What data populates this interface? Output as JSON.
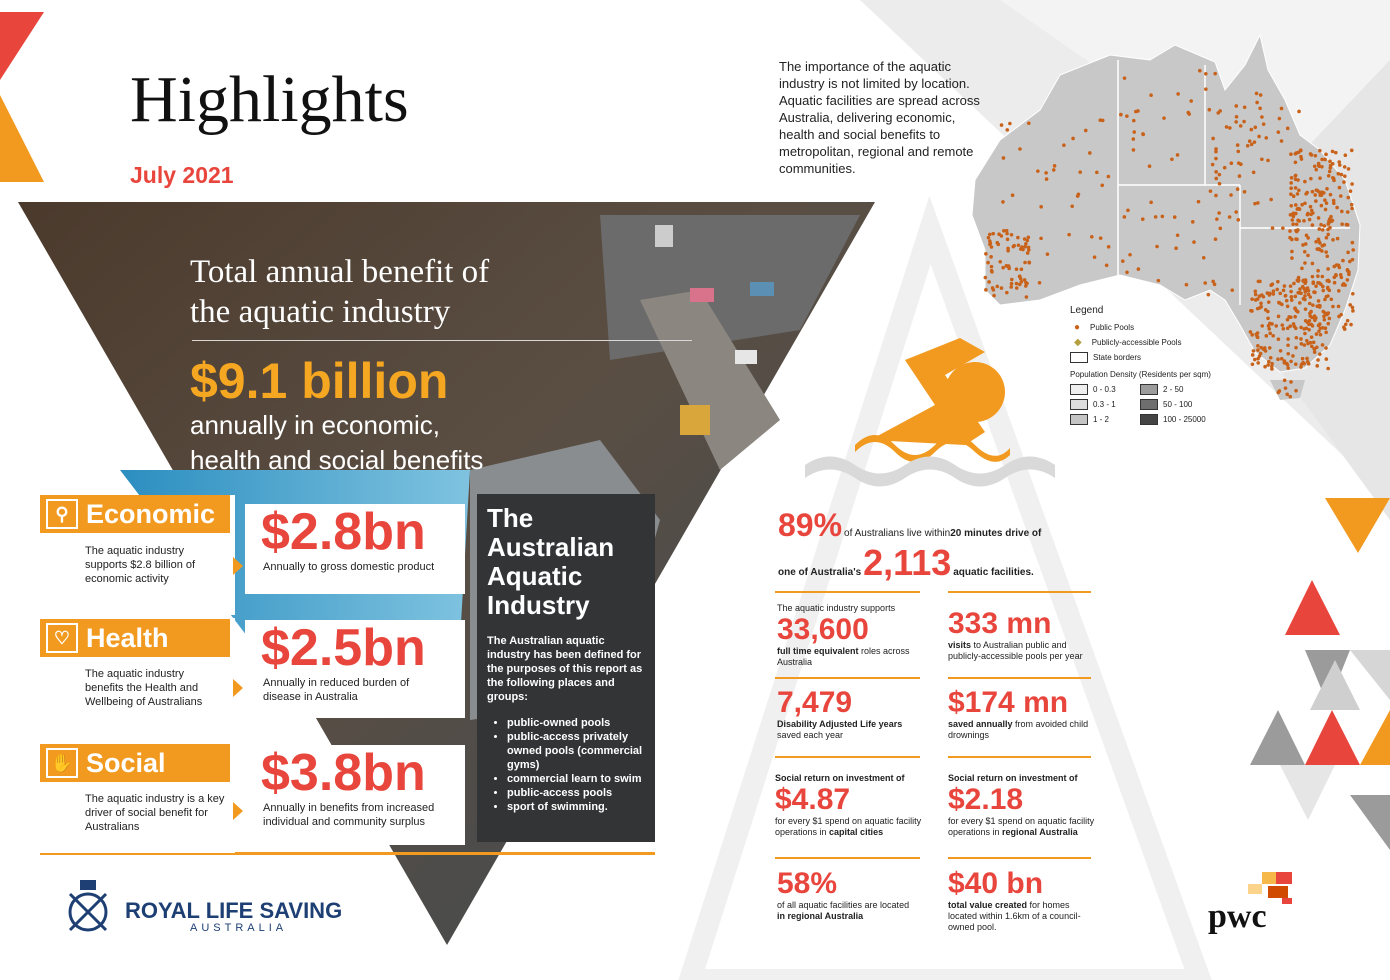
{
  "header": {
    "title": "Highlights",
    "date": "July 2021"
  },
  "intro": {
    "text": "The importance of the aquatic industry is not limited by location. Aquatic facilities are spread across Australia, delivering economic, health and social benefits to metropolitan, regional and remote communities."
  },
  "total": {
    "heading_line1": "Total annual benefit of",
    "heading_line2": "the aquatic industry",
    "amount": "$9.1 billion",
    "sub_line1": "annually in economic,",
    "sub_line2": "health and social benefits"
  },
  "kpis": [
    {
      "label": "Economic",
      "icon": "chart-magnifier-icon",
      "glyph": "⚲",
      "description": "The aquatic industry supports $2.8 billion of economic activity",
      "value": "$2.8bn",
      "caption": "Annually to gross domestic product"
    },
    {
      "label": "Health",
      "icon": "heart-pulse-icon",
      "glyph": "♡",
      "description": "The aquatic industry benefits the Health and Wellbeing of Australians",
      "value": "$2.5bn",
      "caption": "Annually in reduced burden of disease in Australia"
    },
    {
      "label": "Social",
      "icon": "raised-hands-icon",
      "glyph": "✋",
      "description": "The aquatic industry is a key driver of social benefit for Australians",
      "value": "$3.8bn",
      "caption": "Annually in benefits from increased individual and community surplus"
    }
  ],
  "aquatic_box": {
    "title_line1": "The",
    "title_line2": "Australian",
    "title_line3": "Aquatic",
    "title_line4": "Industry",
    "body": "The Australian aquatic industry has been defined for the purposes of this report as the following places and groups:",
    "items": [
      "public-owned pools",
      "public-access privately owned pools (commercial gyms)",
      "commercial learn to swim",
      "public-access pools",
      "sport of swimming."
    ]
  },
  "access": {
    "percent": "89%",
    "text_a": "of Australians live within ",
    "text_b": "20 minutes drive of",
    "text_c": "one of Australia's",
    "facilities": "2,113",
    "text_d": "aquatic facilities."
  },
  "stats": {
    "jobs": {
      "pre": "The aquatic industry supports",
      "value": "33,600",
      "bold": "full time equivalent",
      "post": " roles across Australia"
    },
    "visits": {
      "value": "333 mn",
      "bold": "visits",
      "post": " to Australian public and publicly-accessible pools per year"
    },
    "daly": {
      "value": "7,479",
      "bold": "Disability Adjusted Life years",
      "post": " saved each year"
    },
    "saved": {
      "value": "$174 mn",
      "bold": "saved annually",
      "post": " from avoided child drownings"
    },
    "sroi_cap": {
      "pre": "Social return on investment of",
      "value": "$4.87",
      "post": "for every $1 spend on aquatic facility operations in ",
      "bold": "capital cities"
    },
    "sroi_reg": {
      "pre": "Social return on investment of",
      "value": "$2.18",
      "post": "for every $1 spend on aquatic facility operations in ",
      "bold": "regional Australia"
    },
    "regional": {
      "value": "58%",
      "post": "of all aquatic facilities are located ",
      "bold": "in regional Australia"
    },
    "homes": {
      "value": "$40 bn",
      "bold": "total value created",
      "post": " for homes located within 1.6km of a council-owned pool."
    }
  },
  "map_legend": {
    "title": "Legend",
    "public_pools": "Public Pools",
    "accessible_pools": "Publicly-accessible Pools",
    "state_borders": "State borders",
    "density_title": "Population Density (Residents per sqm)",
    "ranges": [
      "0 - 0.3",
      "0.3 - 1",
      "1 - 2",
      "2 - 50",
      "50 - 100",
      "100 - 25000"
    ]
  },
  "logos": {
    "rls_main": "ROYAL LIFE SAVING",
    "rls_sub": "AUSTRALIA",
    "pwc": "pwc"
  },
  "colors": {
    "orange": "#f29a1f",
    "red": "#e8453c",
    "dark": "#333435"
  }
}
